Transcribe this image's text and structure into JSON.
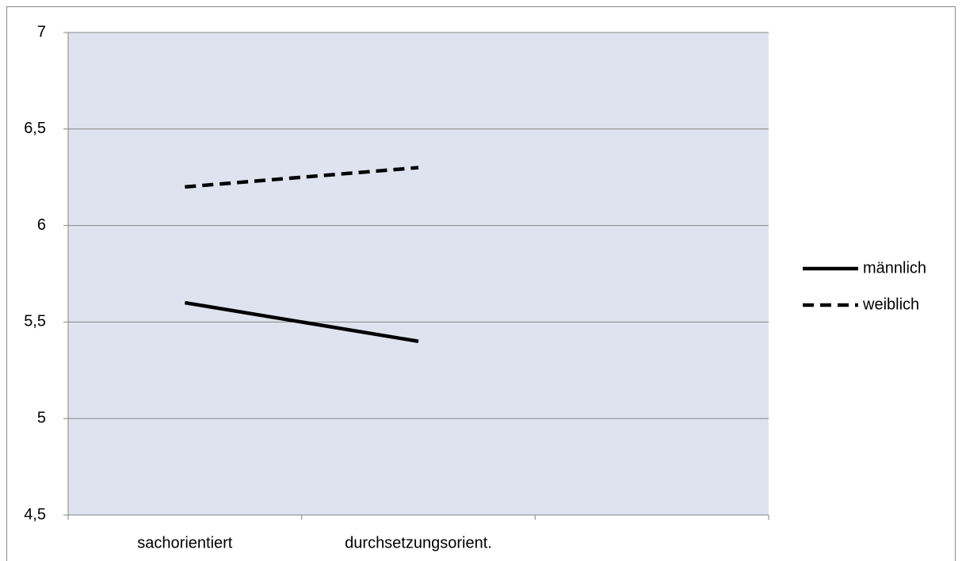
{
  "chart_data": {
    "type": "line",
    "categories": [
      "sachorientiert",
      "durchsetzungsorient.",
      null
    ],
    "series": [
      {
        "name": "männlich",
        "color": "#000000",
        "line_style": "solid",
        "values": [
          5.6,
          5.4,
          null
        ]
      },
      {
        "name": "weiblich",
        "color": "#000000",
        "line_style": "dashed",
        "values": [
          6.2,
          6.3,
          null
        ]
      }
    ],
    "ylim": [
      4.5,
      7
    ],
    "yticks": [
      {
        "value": 4.5,
        "label": "4,5"
      },
      5,
      {
        "value": 5.5,
        "label": "5,5"
      },
      6,
      {
        "value": 6.5,
        "label": "6,5"
      },
      7
    ],
    "grid": true,
    "legend": "right",
    "plot_background": "#dfe3f0"
  }
}
